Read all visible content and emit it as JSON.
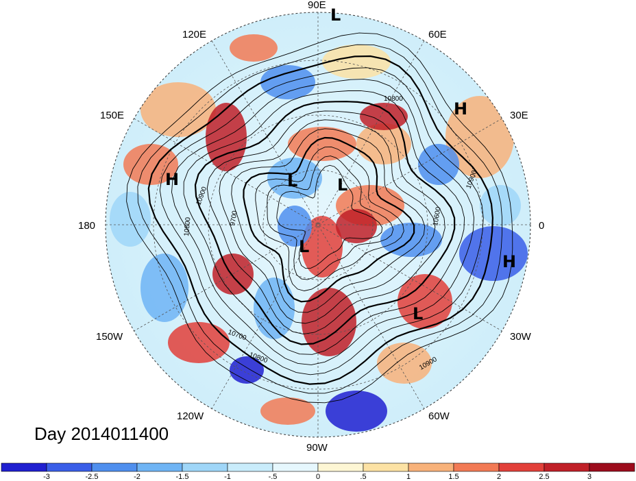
{
  "date_label": "Day 2014011400",
  "lon_labels": [
    "90E",
    "60E",
    "120E",
    "150E",
    "30E",
    "180",
    "0",
    "150W",
    "30W",
    "120W",
    "60W",
    "90W"
  ],
  "pressure_systems": [
    "L",
    "H",
    "H",
    "L",
    "L",
    "L",
    "H",
    "L"
  ],
  "contour_labels": [
    "10800",
    "10900",
    "10700",
    "10800",
    "9700",
    "10900",
    "10800",
    "10600",
    "10900"
  ],
  "colorbar": {
    "ticks": [
      "-3",
      "-2.5",
      "-2",
      "-1.5",
      "-1",
      "-.5",
      "0",
      ".5",
      "1",
      "1.5",
      "2",
      "2.5",
      "3"
    ],
    "colors": [
      "#2020d0",
      "#3a5ee8",
      "#4f8fee",
      "#6fb4f4",
      "#9fd6f8",
      "#c9ecfb",
      "#e6f7fd",
      "#fdf6d4",
      "#fce2a4",
      "#f8b27a",
      "#f27a55",
      "#e2403a",
      "#c02028",
      "#9c0c1c"
    ]
  }
}
